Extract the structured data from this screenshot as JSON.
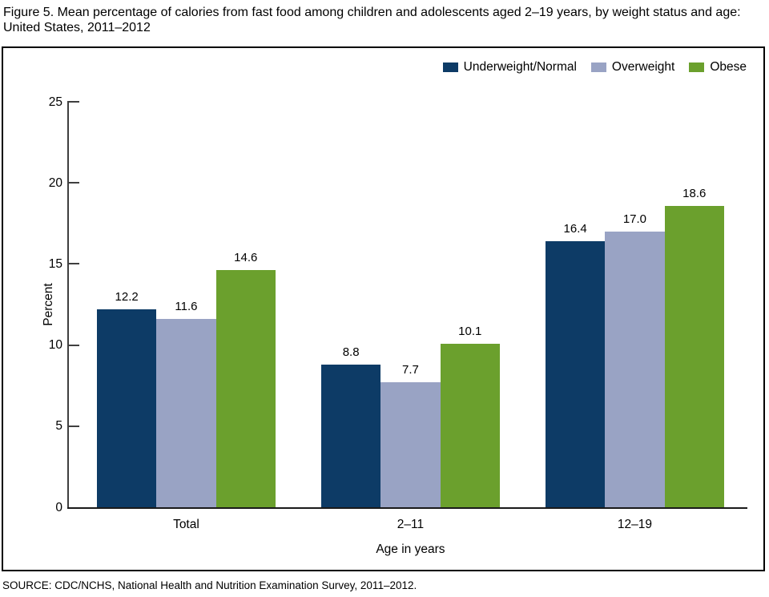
{
  "figure": {
    "title": "Figure 5. Mean percentage of calories from fast food among children and adolescents aged 2–19 years, by weight status and age: United States, 2011–2012",
    "source": "SOURCE: CDC/NCHS, National Health and Nutrition Examination Survey, 2011–2012."
  },
  "chart_data": {
    "type": "bar",
    "title": "Mean percentage of calories from fast food among children and adolescents aged 2–19 years, by weight status and age",
    "categories": [
      "Total",
      "2–11",
      "12–19"
    ],
    "series": [
      {
        "name": "Underweight/Normal",
        "color": "#0d3b66",
        "values": [
          12.2,
          8.8,
          16.4
        ]
      },
      {
        "name": "Overweight",
        "color": "#99a3c4",
        "values": [
          11.6,
          7.7,
          17.0
        ]
      },
      {
        "name": "Obese",
        "color": "#6ba02d",
        "values": [
          14.6,
          10.1,
          18.6
        ]
      }
    ],
    "value_labels": [
      [
        "12.2",
        "8.8",
        "16.4"
      ],
      [
        "11.6",
        "7.7",
        "17.0"
      ],
      [
        "14.6",
        "10.1",
        "18.6"
      ]
    ],
    "xlabel": "Age in years",
    "ylabel": "Percent",
    "ylim": [
      0,
      25
    ],
    "yticks": [
      0,
      5,
      10,
      15,
      20,
      25
    ],
    "legend_position": "top-right",
    "grid": false,
    "axis_color": "#3f3f3f",
    "text_color": "#000000"
  }
}
